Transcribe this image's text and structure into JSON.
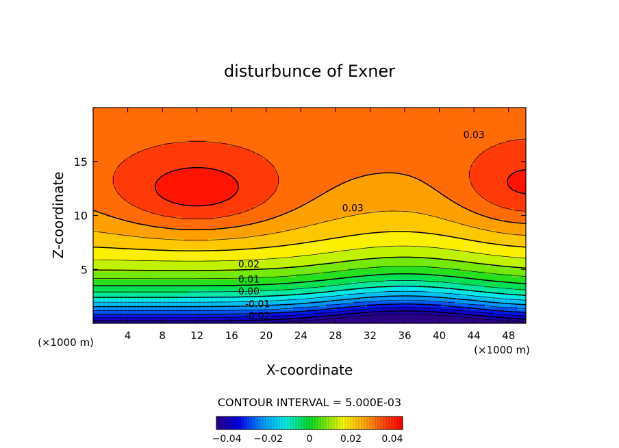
{
  "chart_data": {
    "type": "contour",
    "title": "disturbunce of Exner",
    "xlabel": "X-coordinate",
    "ylabel": "Z-coordinate",
    "x_unit_label": "(×1000 m)",
    "y_unit_label": "(×1000 m)",
    "xlim": [
      0,
      50
    ],
    "ylim": [
      0,
      20
    ],
    "x_ticks": [
      4,
      8,
      12,
      16,
      20,
      24,
      28,
      32,
      36,
      40,
      44,
      48
    ],
    "y_ticks": [
      5,
      10,
      15
    ],
    "contour_interval_text": "CONTOUR INTERVAL = 5.000E-03",
    "contour_interval": 0.005,
    "contour_labels": [
      {
        "text": "0.03",
        "x": 30,
        "z": 10.7
      },
      {
        "text": "0.03",
        "x": 44,
        "z": 17.5
      },
      {
        "text": "0.02",
        "x": 18,
        "z": 5.5
      },
      {
        "text": "0.01",
        "x": 18,
        "z": 4.1
      },
      {
        "text": "0.00",
        "x": 18,
        "z": 3.0
      },
      {
        "text": "-0.01",
        "x": 19,
        "z": 1.8
      },
      {
        "text": "-0.02",
        "x": 19,
        "z": 0.7
      }
    ],
    "field_range": [
      -0.045,
      0.045
    ],
    "features": {
      "max_center": {
        "x": 12,
        "z": 12,
        "value": 0.045
      },
      "secondary_max": {
        "x": 50,
        "z": 12.5,
        "value": 0.043
      },
      "saddle": {
        "x": 36,
        "z": 14,
        "value": 0.029
      },
      "min_center": {
        "x": 36,
        "z": 0,
        "value": -0.045
      }
    },
    "colorbar": {
      "ticks": [
        {
          "label": "−0.04",
          "value": -0.04
        },
        {
          "label": "−0.02",
          "value": -0.02
        },
        {
          "label": "0",
          "value": 0
        },
        {
          "label": "0.02",
          "value": 0.02
        },
        {
          "label": "0.04",
          "value": 0.04
        }
      ]
    }
  }
}
